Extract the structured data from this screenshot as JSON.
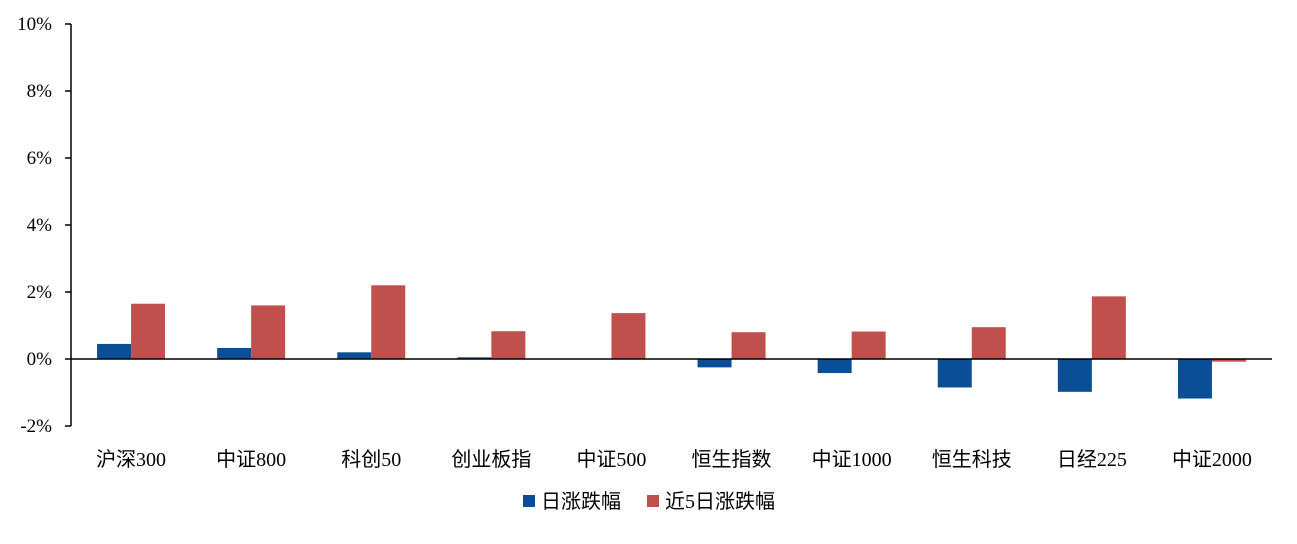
{
  "chart_data": {
    "type": "bar",
    "title": "",
    "xlabel": "",
    "ylabel": "",
    "ylim": [
      -2,
      10
    ],
    "yticks": [
      -2,
      0,
      2,
      4,
      6,
      8,
      10
    ],
    "y_tick_suffix": "%",
    "grid": false,
    "legend_position": "bottom",
    "categories": [
      "沪深300",
      "中证800",
      "科创50",
      "创业板指",
      "中证500",
      "恒生指数",
      "中证1000",
      "恒生科技",
      "日经225",
      "中证2000"
    ],
    "series": [
      {
        "name": "日涨跌幅",
        "color": "#0a4f96",
        "values": [
          0.45,
          0.33,
          0.2,
          0.05,
          0.0,
          -0.25,
          -0.42,
          -0.85,
          -0.98,
          -1.18
        ]
      },
      {
        "name": "近5日涨跌幅",
        "color": "#c0504d",
        "values": [
          1.65,
          1.6,
          2.2,
          0.83,
          1.37,
          0.8,
          0.82,
          0.95,
          1.87,
          -0.08
        ]
      }
    ]
  }
}
